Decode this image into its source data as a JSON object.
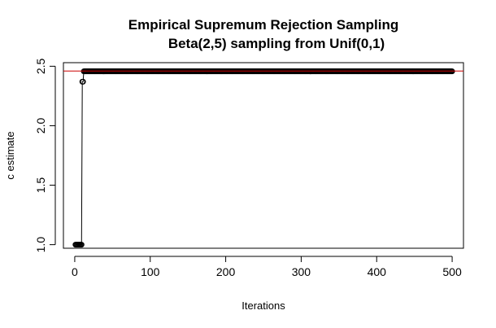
{
  "chart_data": {
    "type": "line",
    "title": "Empirical Supremum Rejection Sampling",
    "subtitle": "Beta(2,5) sampling from Unif(0,1)",
    "xlabel": "Iterations",
    "ylabel": "c estimate",
    "xlim": [
      -15,
      515
    ],
    "ylim": [
      0.97,
      2.53
    ],
    "x_ticks": [
      0,
      100,
      200,
      300,
      400,
      500
    ],
    "y_ticks": [
      1.0,
      1.5,
      2.0,
      2.5
    ],
    "x_tick_labels": [
      "0",
      "100",
      "200",
      "300",
      "400",
      "500"
    ],
    "y_tick_labels": [
      "1.0",
      "1.5",
      "2.0",
      "2.5"
    ],
    "grid": false,
    "legend": "none",
    "series": [
      {
        "segments": [
          {
            "x_start": 1,
            "x_end": 9,
            "y": 1.0
          },
          {
            "x_start": 10,
            "x_end": 11,
            "y": 2.37
          },
          {
            "x_start": 12,
            "x_end": 500,
            "y": 2.457
          }
        ],
        "line_color": "#000000",
        "marker": "open-circle",
        "marker_color": "#000000"
      }
    ],
    "reference_line": {
      "y": 2.46,
      "color": "#cc0000"
    }
  }
}
